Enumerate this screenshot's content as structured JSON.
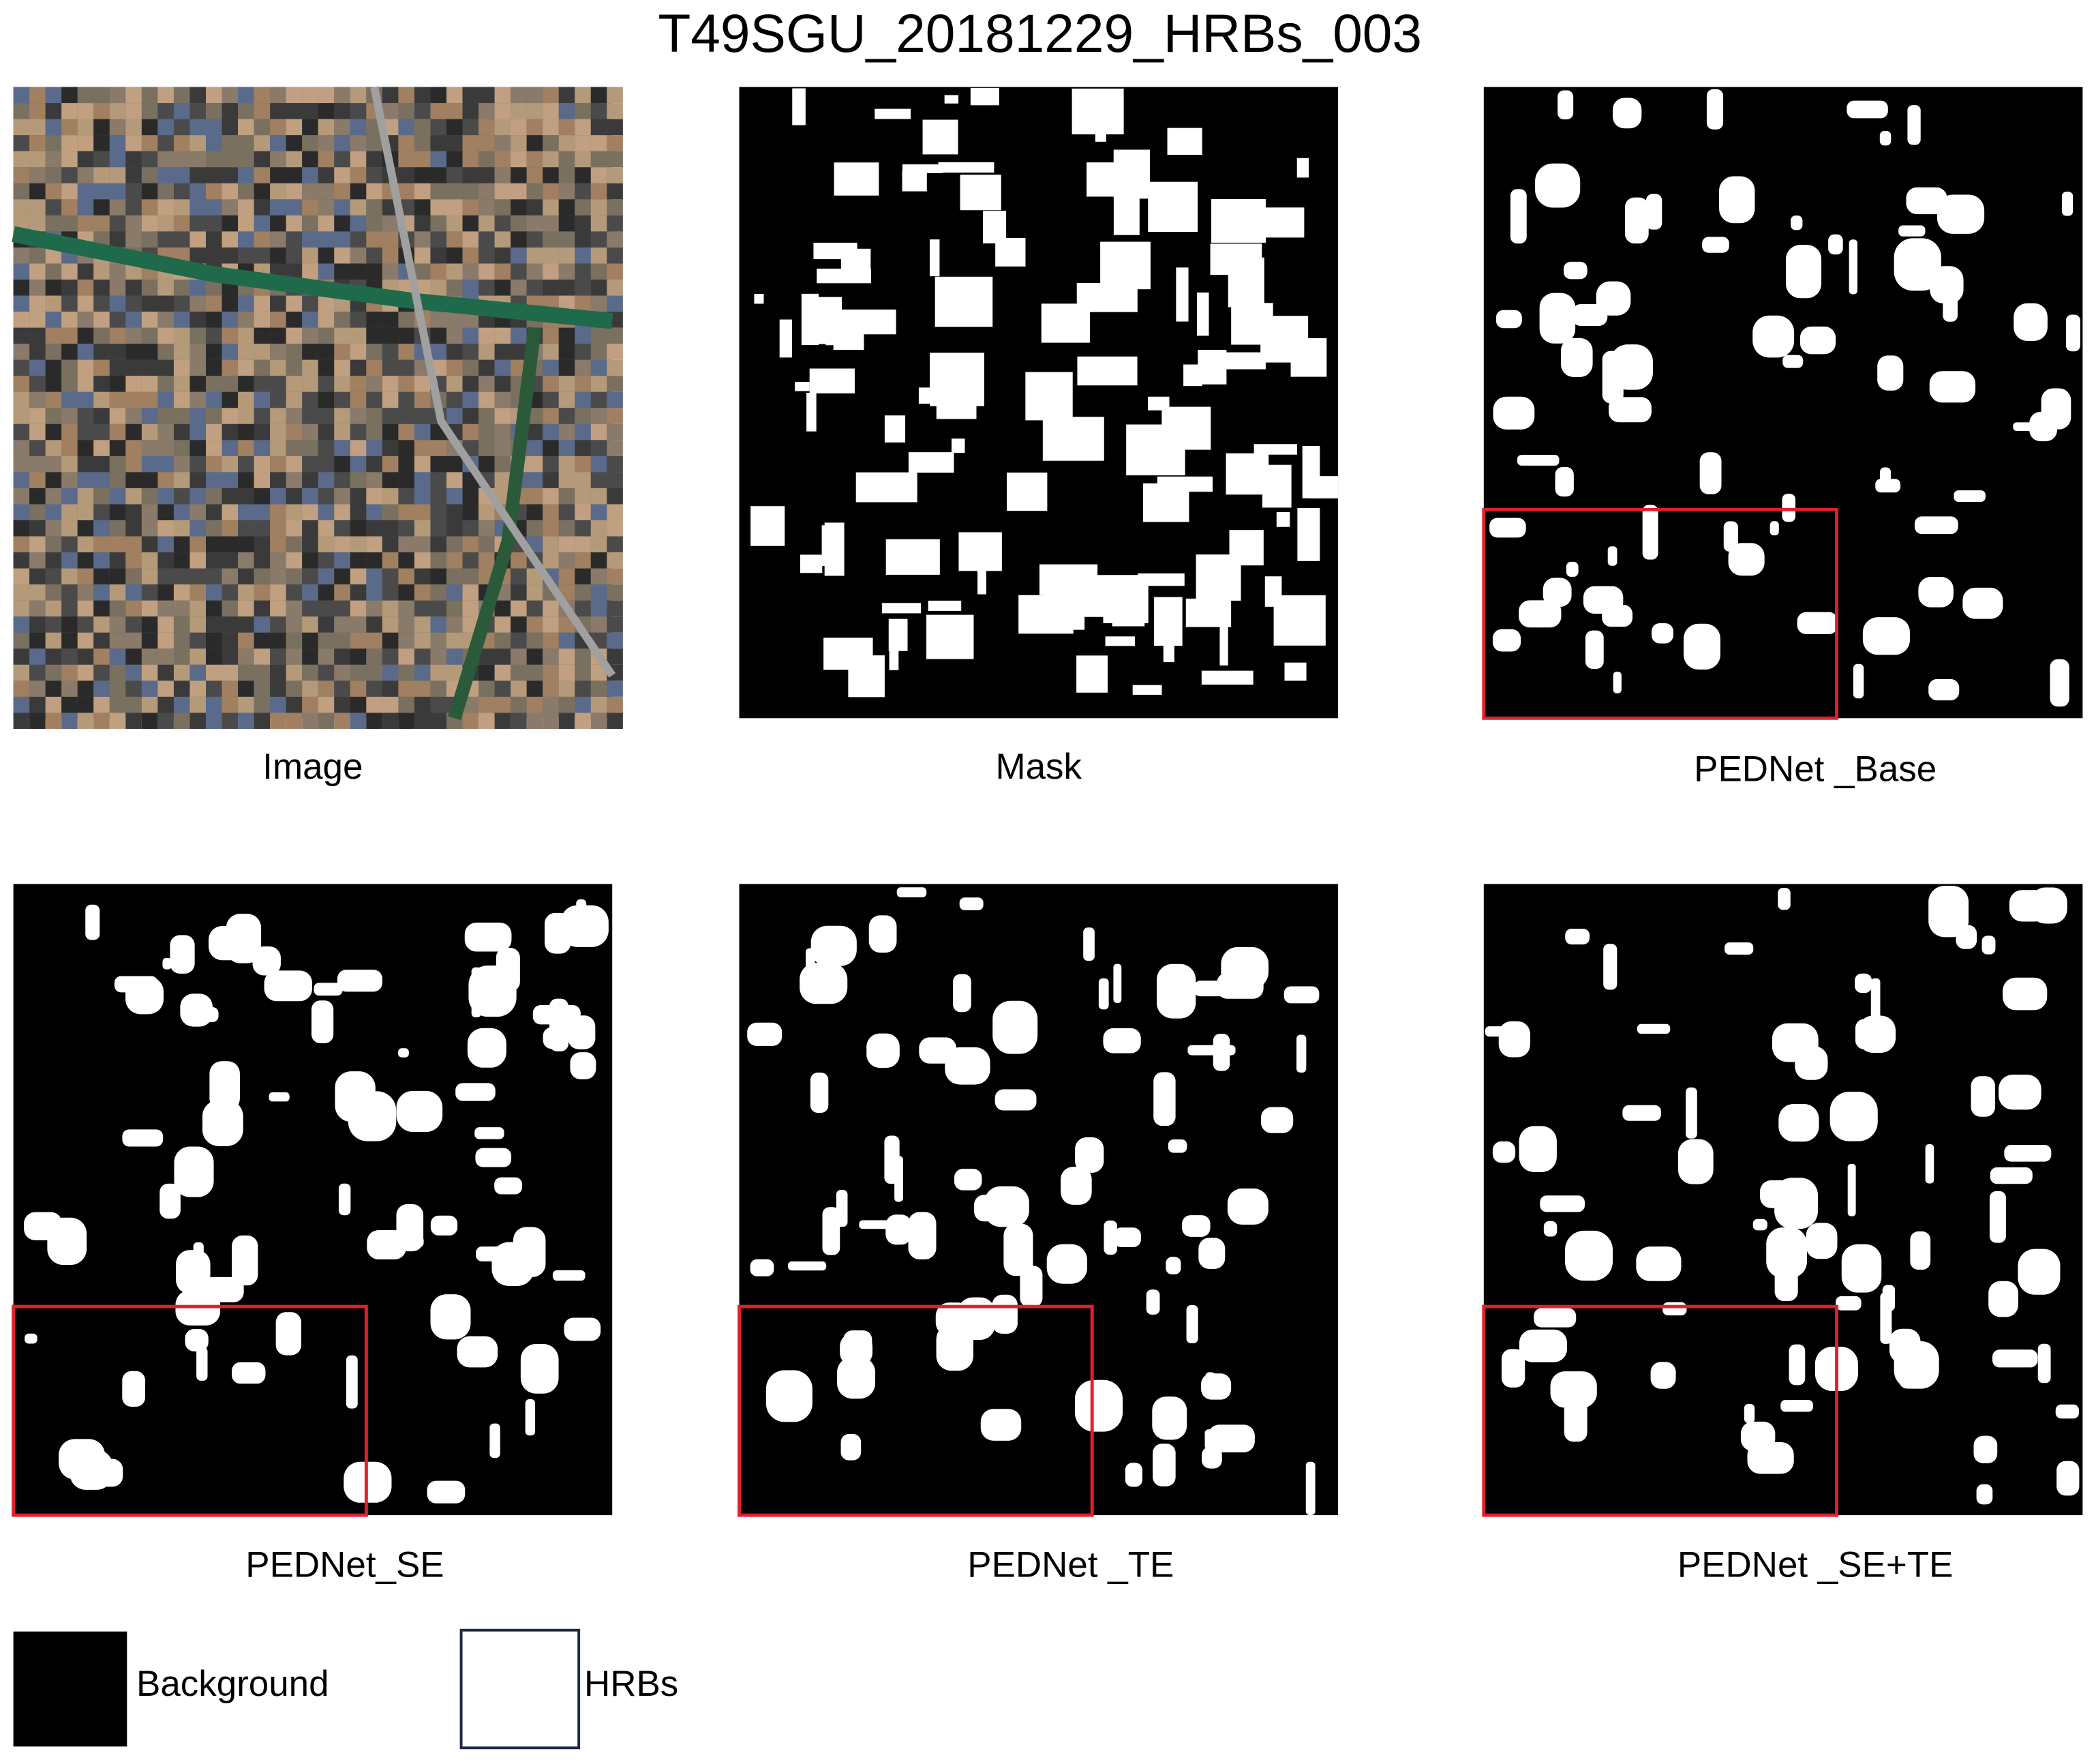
{
  "title": "T49SGU_20181229_HRBs_003",
  "panels": [
    {
      "label": "Image"
    },
    {
      "label": "Mask"
    },
    {
      "label": "PEDNet _Base"
    },
    {
      "label": "PEDNet_SE"
    },
    {
      "label": "PEDNet _TE"
    },
    {
      "label": "PEDNet _SE+TE"
    }
  ],
  "legend": [
    {
      "label": "Background"
    },
    {
      "label": "HRBs"
    }
  ]
}
